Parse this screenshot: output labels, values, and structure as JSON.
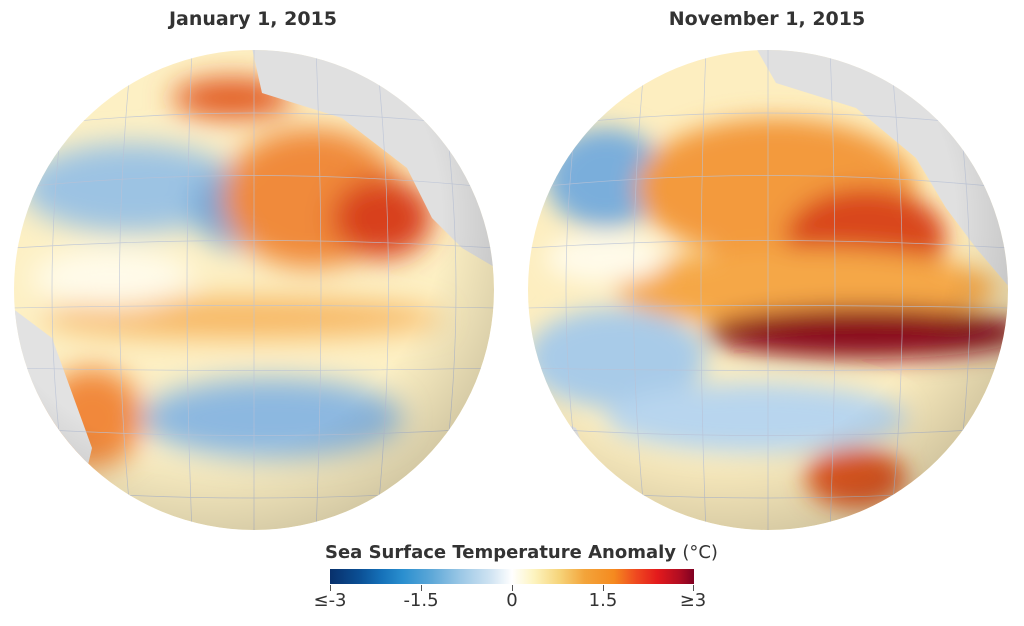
{
  "panels": [
    {
      "title": "January 1, 2015"
    },
    {
      "title": "November 1, 2015"
    }
  ],
  "legend": {
    "title": "Sea Surface Temperature Anomaly",
    "unit": "(°C)",
    "ticks": [
      "≤-3",
      "-1.5",
      "0",
      "1.5",
      "≥3"
    ],
    "colors": [
      "#08306b",
      "#1570b8",
      "#9cc8e6",
      "#ffffff",
      "#f6d47a",
      "#f58a1f",
      "#e31a1c",
      "#7f0022"
    ]
  }
}
